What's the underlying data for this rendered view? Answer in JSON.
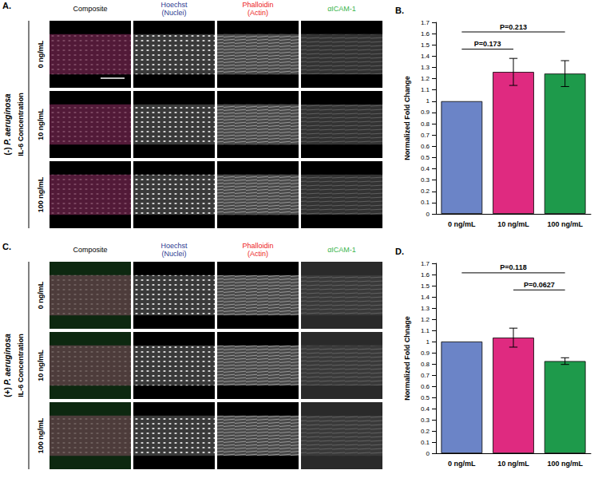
{
  "image_panels": [
    {
      "letter": "A.",
      "condition": "(-) P. aeruginosa",
      "row_group": "IL-6 Concentration",
      "rows": [
        "0 ng/mL",
        "10 ng/mL",
        "100 ng/mL"
      ],
      "columns": [
        {
          "label": "Composite",
          "color": "#000000"
        },
        {
          "label": "Hoechst (Nuclei)",
          "color": "#2b3990"
        },
        {
          "label": "Phalloidin (Actin)",
          "color": "#ed1c24"
        },
        {
          "label": "αICAM-1",
          "color": "#39b54a"
        }
      ]
    },
    {
      "letter": "C.",
      "condition": "(+) P. aeruginosa",
      "row_group": "IL-6 Concentration",
      "rows": [
        "0 ng/mL",
        "10 ng/mL",
        "100 ng/mL"
      ],
      "columns": [
        {
          "label": "Composite",
          "color": "#000000"
        },
        {
          "label": "Hoechst (Nuclei)",
          "color": "#2b3990"
        },
        {
          "label": "Phalloidin (Actin)",
          "color": "#ed1c24"
        },
        {
          "label": "αICAM-1",
          "color": "#39b54a"
        }
      ]
    }
  ],
  "chart_data": [
    {
      "type": "bar",
      "title": "B.",
      "ylabel": "Normalized Fold Change",
      "categories": [
        "0 ng/mL",
        "10 ng/mL",
        "100 ng/mL"
      ],
      "values": [
        1.0,
        1.26,
        1.245
      ],
      "errors": [
        0,
        0.12,
        0.115
      ],
      "colors": [
        "#6b84c7",
        "#df2a80",
        "#1e9a4b"
      ],
      "ylim": [
        0,
        1.7
      ],
      "yticks": [
        0,
        0.1,
        0.2,
        0.3,
        0.4,
        0.5,
        0.6,
        0.7,
        0.8,
        0.9,
        1,
        1.1,
        1.2,
        1.3,
        1.4,
        1.5,
        1.6,
        1.7
      ],
      "grid": false,
      "annotations": [
        {
          "text": "P=0.213",
          "from": "0 ng/mL",
          "to": "100 ng/mL"
        },
        {
          "text": "P=0.173",
          "from": "0 ng/mL",
          "to": "10 ng/mL"
        }
      ]
    },
    {
      "type": "bar",
      "title": "D.",
      "ylabel": "Normalized Fold Chnage",
      "categories": [
        "0 ng/mL",
        "10 ng/mL",
        "100 ng/mL"
      ],
      "values": [
        1.0,
        1.035,
        0.825
      ],
      "errors": [
        0,
        0.085,
        0.03
      ],
      "colors": [
        "#6b84c7",
        "#df2a80",
        "#1e9a4b"
      ],
      "ylim": [
        0,
        1.7
      ],
      "yticks": [
        0,
        0.1,
        0.2,
        0.3,
        0.4,
        0.5,
        0.6,
        0.7,
        0.8,
        0.9,
        1,
        1.1,
        1.2,
        1.3,
        1.4,
        1.5,
        1.6,
        1.7
      ],
      "grid": false,
      "annotations": [
        {
          "text": "P=0.118",
          "from": "0 ng/mL",
          "to": "100 ng/mL"
        },
        {
          "text": "P=0.0627",
          "from": "10 ng/mL",
          "to": "100 ng/mL"
        }
      ]
    }
  ]
}
